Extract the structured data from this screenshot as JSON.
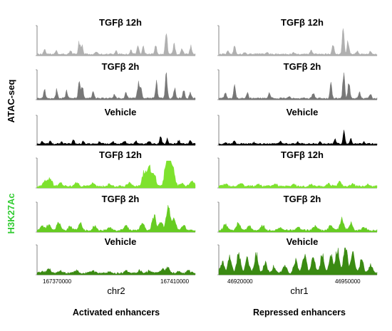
{
  "chart_data": {
    "type": "area",
    "assays": [
      {
        "name": "ATAC-seq",
        "color": "#000000",
        "tracks": [
          0,
          1,
          2
        ]
      },
      {
        "name": "H3K27Ac",
        "color": "#33cc33",
        "tracks": [
          3,
          4,
          5
        ]
      }
    ],
    "track_labels": [
      "TGFβ 12h",
      "TGFβ 2h",
      "Vehicle",
      "TGFβ 12h",
      "TGFβ 2h",
      "Vehicle"
    ],
    "track_colors": [
      "#b0b0b0",
      "#777777",
      "#000000",
      "#7ee22e",
      "#66cc22",
      "#3a8a12"
    ],
    "panels": [
      {
        "title": "Activated enhancers",
        "chromosome": "chr2",
        "x_ticks": [
          167370000,
          167410000
        ],
        "xlim": [
          167368000,
          167416000
        ],
        "ylim": [
          0,
          1
        ],
        "tracks": [
          {
            "label": "TGFβ 12h",
            "peaks": [
              [
                167370300,
                0.22
              ],
              [
                167373800,
                0.12
              ],
              [
                167378200,
                0.14
              ],
              [
                167380800,
                0.42
              ],
              [
                167381600,
                0.3
              ],
              [
                167386000,
                0.1
              ],
              [
                167392000,
                0.12
              ],
              [
                167396500,
                0.14
              ],
              [
                167398600,
                0.35
              ],
              [
                167400200,
                0.25
              ],
              [
                167404000,
                0.32
              ],
              [
                167407200,
                0.82
              ],
              [
                167409600,
                0.36
              ],
              [
                167412000,
                0.2
              ],
              [
                167414600,
                0.3
              ]
            ]
          },
          {
            "label": "TGFβ 2h",
            "peaks": [
              [
                167370300,
                0.3
              ],
              [
                167374000,
                0.32
              ],
              [
                167377000,
                0.3
              ],
              [
                167380800,
                0.6
              ],
              [
                167381700,
                0.45
              ],
              [
                167385000,
                0.3
              ],
              [
                167391500,
                0.18
              ],
              [
                167395000,
                0.22
              ],
              [
                167398700,
                0.52
              ],
              [
                167399500,
                0.4
              ],
              [
                167404200,
                0.62
              ],
              [
                167407200,
                0.95
              ],
              [
                167409700,
                0.4
              ],
              [
                167412500,
                0.3
              ],
              [
                167414500,
                0.25
              ]
            ]
          },
          {
            "label": "Vehicle",
            "peaks": [
              [
                167369500,
                0.1
              ],
              [
                167372000,
                0.12
              ],
              [
                167375500,
                0.08
              ],
              [
                167379000,
                0.15
              ],
              [
                167382000,
                0.1
              ],
              [
                167387000,
                0.1
              ],
              [
                167391000,
                0.09
              ],
              [
                167394500,
                0.12
              ],
              [
                167398000,
                0.1
              ],
              [
                167402000,
                0.12
              ],
              [
                167405500,
                0.24
              ],
              [
                167407500,
                0.16
              ],
              [
                167411000,
                0.14
              ],
              [
                167414500,
                0.12
              ]
            ]
          },
          {
            "label": "TGFβ 12h",
            "peaks": [
              [
                167370500,
                0.22
              ],
              [
                167372000,
                0.26
              ],
              [
                167375000,
                0.12
              ],
              [
                167380000,
                0.14
              ],
              [
                167385000,
                0.1
              ],
              [
                167390000,
                0.09
              ],
              [
                167396000,
                0.12
              ],
              [
                167400500,
                0.52
              ],
              [
                167402000,
                0.72
              ],
              [
                167403500,
                0.42
              ],
              [
                167407200,
                0.82
              ],
              [
                167408200,
                0.9
              ],
              [
                167409300,
                0.55
              ],
              [
                167412000,
                0.12
              ],
              [
                167415000,
                0.2
              ]
            ]
          },
          {
            "label": "TGFβ 2h",
            "peaks": [
              [
                167369500,
                0.15
              ],
              [
                167371500,
                0.22
              ],
              [
                167374500,
                0.28
              ],
              [
                167378000,
                0.16
              ],
              [
                167381000,
                0.26
              ],
              [
                167385500,
                0.16
              ],
              [
                167390000,
                0.12
              ],
              [
                167395000,
                0.16
              ],
              [
                167400000,
                0.28
              ],
              [
                167403500,
                0.5
              ],
              [
                167405500,
                0.34
              ],
              [
                167407800,
                0.82
              ],
              [
                167409500,
                0.4
              ],
              [
                167412500,
                0.18
              ]
            ]
          },
          {
            "label": "Vehicle",
            "peaks": [
              [
                167369500,
                0.06
              ],
              [
                167371500,
                0.15
              ],
              [
                167375000,
                0.08
              ],
              [
                167380000,
                0.1
              ],
              [
                167385000,
                0.08
              ],
              [
                167390000,
                0.06
              ],
              [
                167395000,
                0.07
              ],
              [
                167399000,
                0.1
              ],
              [
                167402000,
                0.08
              ],
              [
                167406000,
                0.14
              ],
              [
                167407700,
                0.2
              ],
              [
                167411000,
                0.06
              ],
              [
                167414000,
                0.1
              ]
            ]
          }
        ]
      },
      {
        "title": "Repressed enhancers",
        "chromosome": "chr1",
        "x_ticks": [
          46920000,
          46950000
        ],
        "xlim": [
          46919000,
          46955000
        ],
        "ylim": [
          0,
          1
        ],
        "tracks": [
          {
            "label": "TGFβ 12h",
            "peaks": [
              [
                46921000,
                0.12
              ],
              [
                46922600,
                0.32
              ],
              [
                46925000,
                0.08
              ],
              [
                46930000,
                0.06
              ],
              [
                46936000,
                0.06
              ],
              [
                46940000,
                0.14
              ],
              [
                46945000,
                0.4
              ],
              [
                46947300,
                0.98
              ],
              [
                46948400,
                0.5
              ],
              [
                46950500,
                0.12
              ],
              [
                46953500,
                0.1
              ]
            ]
          },
          {
            "label": "TGFβ 2h",
            "peaks": [
              [
                46920500,
                0.18
              ],
              [
                46922600,
                0.5
              ],
              [
                46925500,
                0.22
              ],
              [
                46930500,
                0.2
              ],
              [
                46935000,
                0.08
              ],
              [
                46940500,
                0.22
              ],
              [
                46944500,
                0.52
              ],
              [
                46947400,
                0.98
              ],
              [
                46948600,
                0.65
              ],
              [
                46951000,
                0.2
              ],
              [
                46953500,
                0.15
              ]
            ]
          },
          {
            "label": "Vehicle",
            "peaks": [
              [
                46920500,
                0.06
              ],
              [
                46922500,
                0.12
              ],
              [
                46927000,
                0.06
              ],
              [
                46933000,
                0.08
              ],
              [
                46937000,
                0.06
              ],
              [
                46942000,
                0.08
              ],
              [
                46945500,
                0.16
              ],
              [
                46947500,
                0.45
              ],
              [
                46949000,
                0.2
              ],
              [
                46952000,
                0.08
              ]
            ]
          },
          {
            "label": "TGFβ 12h",
            "peaks": [
              [
                46920500,
                0.08
              ],
              [
                46924000,
                0.1
              ],
              [
                46928000,
                0.06
              ],
              [
                46932000,
                0.07
              ],
              [
                46936000,
                0.06
              ],
              [
                46940000,
                0.07
              ],
              [
                46944000,
                0.1
              ],
              [
                46946500,
                0.16
              ],
              [
                46949500,
                0.08
              ],
              [
                46953000,
                0.08
              ]
            ]
          },
          {
            "label": "TGFβ 2h",
            "peaks": [
              [
                46920500,
                0.22
              ],
              [
                46923500,
                0.26
              ],
              [
                46926000,
                0.18
              ],
              [
                46929000,
                0.16
              ],
              [
                46933000,
                0.1
              ],
              [
                46937000,
                0.1
              ],
              [
                46941000,
                0.16
              ],
              [
                46944500,
                0.2
              ],
              [
                46947000,
                0.4
              ],
              [
                46949000,
                0.26
              ],
              [
                46952000,
                0.12
              ]
            ]
          },
          {
            "label": "Vehicle",
            "peaks": [
              [
                46919800,
                0.4
              ],
              [
                46921500,
                0.55
              ],
              [
                46923500,
                0.72
              ],
              [
                46925500,
                0.52
              ],
              [
                46927500,
                0.7
              ],
              [
                46929500,
                0.38
              ],
              [
                46931500,
                0.22
              ],
              [
                46934000,
                0.3
              ],
              [
                46936500,
                0.45
              ],
              [
                46938500,
                0.72
              ],
              [
                46940500,
                0.55
              ],
              [
                46942500,
                0.68
              ],
              [
                46944500,
                0.6
              ],
              [
                46946000,
                0.9
              ],
              [
                46947800,
                1.0
              ],
              [
                46949500,
                0.75
              ],
              [
                46951500,
                0.5
              ],
              [
                46953500,
                0.32
              ]
            ]
          }
        ]
      }
    ]
  }
}
